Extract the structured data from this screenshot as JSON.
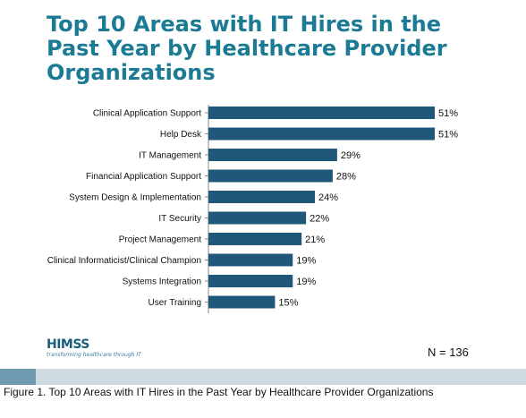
{
  "chart_data": {
    "type": "bar",
    "orientation": "horizontal",
    "title": "Top 10 Areas with IT Hires in the Past Year by Healthcare Provider Organizations",
    "categories": [
      "Clinical Application Support",
      "Help Desk",
      "IT Management",
      "Financial Application Support",
      "System Design & Implementation",
      "IT Security",
      "Project Management",
      "Clinical Informaticist/Clinical Champion",
      "Systems Integration",
      "User Training"
    ],
    "values": [
      51,
      51,
      29,
      28,
      24,
      22,
      21,
      19,
      19,
      15
    ],
    "value_labels": [
      "51%",
      "51%",
      "29%",
      "28%",
      "24%",
      "22%",
      "21%",
      "19%",
      "19%",
      "15%"
    ],
    "unit": "%",
    "xlim": [
      0,
      51
    ],
    "grid": false,
    "bar_color": "#1f5878"
  },
  "logo": {
    "wordmark": "HIMSS",
    "tagline": "transforming healthcare through IT"
  },
  "sample_size": "N = 136",
  "caption": "Figure 1. Top 10 Areas with IT Hires in the Past Year by Healthcare Provider Organizations",
  "colors": {
    "title": "#1b7a94",
    "bar": "#1f5878",
    "strip_light": "#cfd9e0",
    "strip_dark": "#6f9ab0"
  }
}
